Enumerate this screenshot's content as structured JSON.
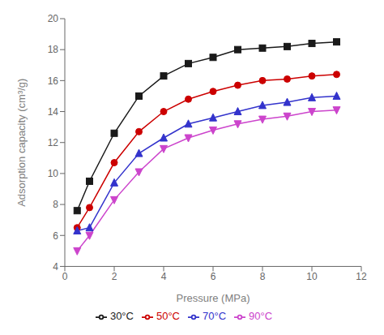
{
  "chart_data": {
    "type": "line",
    "xlabel": "Pressure (MPa)",
    "ylabel": "Adsorption capacity (cm³/g)",
    "x": [
      0.5,
      1.0,
      2.0,
      3.0,
      4.0,
      5.0,
      6.0,
      7.0,
      8.0,
      9.0,
      10.0,
      11.0
    ],
    "xlim": [
      0,
      12
    ],
    "ylim": [
      4,
      20
    ],
    "xticks": [
      0,
      2,
      4,
      6,
      8,
      10,
      12
    ],
    "yticks": [
      4,
      6,
      8,
      10,
      12,
      14,
      16,
      18,
      20
    ],
    "grid": false,
    "legend": "bottom",
    "series": [
      {
        "name": "30°C",
        "color": "#1a1a1a",
        "marker": "square",
        "values": [
          7.6,
          9.5,
          12.6,
          15.0,
          16.3,
          17.1,
          17.5,
          18.0,
          18.1,
          18.2,
          18.4,
          18.5
        ]
      },
      {
        "name": "50°C",
        "color": "#cc0000",
        "marker": "circle",
        "values": [
          6.5,
          7.8,
          10.7,
          12.7,
          14.0,
          14.8,
          15.3,
          15.7,
          16.0,
          16.1,
          16.3,
          16.4
        ]
      },
      {
        "name": "70°C",
        "color": "#3333cc",
        "marker": "triangle-up",
        "values": [
          6.3,
          6.5,
          9.4,
          11.3,
          12.3,
          13.2,
          13.6,
          14.0,
          14.4,
          14.6,
          14.9,
          15.0
        ]
      },
      {
        "name": "90°C",
        "color": "#cc44cc",
        "marker": "triangle-down",
        "values": [
          5.0,
          6.0,
          8.3,
          10.1,
          11.6,
          12.3,
          12.8,
          13.2,
          13.5,
          13.7,
          14.0,
          14.1
        ]
      }
    ]
  }
}
